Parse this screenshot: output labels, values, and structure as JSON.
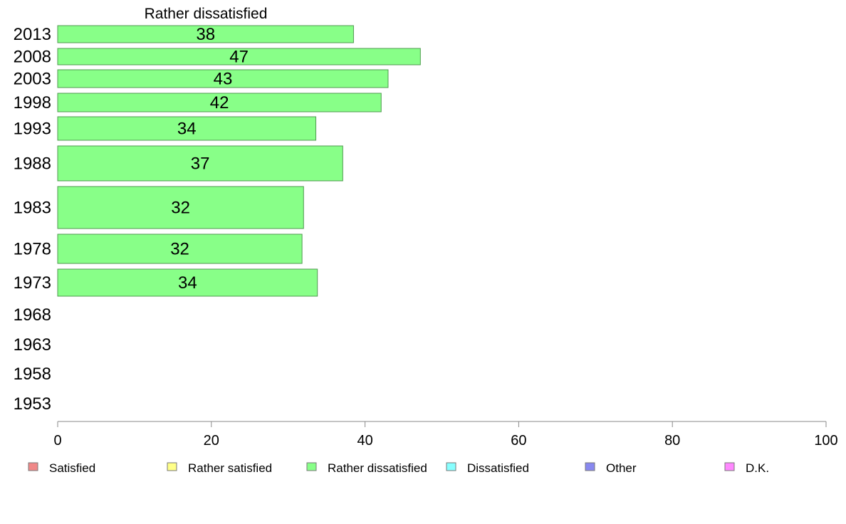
{
  "chart_data": {
    "type": "bar",
    "orientation": "horizontal",
    "title": "Rather dissatisfied",
    "categories": [
      "2013",
      "2008",
      "2003",
      "1998",
      "1993",
      "1988",
      "1983",
      "1978",
      "1973",
      "1968",
      "1963",
      "1958",
      "1953"
    ],
    "series": [
      {
        "name": "Rather dissatisfied",
        "color": "#88ff88",
        "values": [
          38.5,
          47.2,
          43.0,
          42.1,
          33.6,
          37.1,
          32.0,
          31.8,
          33.8,
          null,
          null,
          null,
          null
        ],
        "labels": [
          "38",
          "47",
          "43",
          "42",
          "34",
          "37",
          "32",
          "32",
          "34",
          "",
          "",
          "",
          ""
        ]
      }
    ],
    "xlim": [
      0,
      100
    ],
    "x_ticks": [
      "0",
      "20",
      "40",
      "60",
      "80",
      "100"
    ],
    "grid": false,
    "legend_position": "bottom",
    "legend": [
      {
        "name": "Satisfied",
        "color": "#f08888"
      },
      {
        "name": "Rather satisfied",
        "color": "#ffff88"
      },
      {
        "name": "Rather dissatisfied",
        "color": "#88ff88"
      },
      {
        "name": "Dissatisfied",
        "color": "#88ffff"
      },
      {
        "name": "Other",
        "color": "#8888f0"
      },
      {
        "name": "D.K.",
        "color": "#ff88ff"
      }
    ]
  }
}
